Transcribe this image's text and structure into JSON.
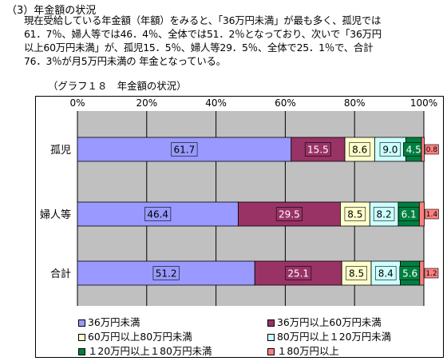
{
  "heading": "（3）年金額の状況",
  "paragraph": "現在受給している年金額（年額）をみると、「36万円未満」が最も多く、孤児では\n61．7％、婦人等では46．4％、全体では51．2％となっており、次いで「36万円\n以上60万円未満」が、孤児15．5％、婦人等29．5％、全体で25．1％で、合計\n76．3％が月5万円未満の 年金となっている。",
  "caption": "（グラフ１８　年金額の状況）",
  "colors": {
    "s1": "#9999ff",
    "s2": "#993366",
    "s3": "#ffffcc",
    "s4": "#ccffff",
    "s5": "#008040",
    "s6": "#ff8080",
    "plot_bg": "#c0c0c0"
  },
  "chart_data": {
    "type": "bar",
    "orientation": "horizontal",
    "stacked": "percent",
    "xlim": [
      0,
      100
    ],
    "x_ticks": [
      "0%",
      "20%",
      "40%",
      "60%",
      "80%",
      "100%"
    ],
    "categories": [
      "孤児",
      "婦人等",
      "合計"
    ],
    "series": [
      {
        "name": "36万円未満",
        "values": [
          61.7,
          46.4,
          51.2
        ]
      },
      {
        "name": "36万円以上60万円未満",
        "values": [
          15.5,
          29.5,
          25.1
        ]
      },
      {
        "name": "60万円以上80万円未満",
        "values": [
          8.6,
          8.5,
          8.5
        ]
      },
      {
        "name": "80万円以上120万円未満",
        "values": [
          9.0,
          8.2,
          8.4
        ]
      },
      {
        "name": "120万円以上180万円未満",
        "values": [
          4.5,
          6.1,
          5.6
        ]
      },
      {
        "name": "180万円以上",
        "values": [
          0.8,
          1.4,
          1.2
        ]
      }
    ],
    "labels": [
      [
        "61.7",
        "15.5",
        "8.6",
        "9.0",
        "4.5",
        "0.8"
      ],
      [
        "46.4",
        "29.5",
        "8.5",
        "8.2",
        "6.1",
        "1.4"
      ],
      [
        "51.2",
        "25.1",
        "8.5",
        "8.4",
        "5.6",
        "1.2"
      ]
    ],
    "legend": {
      "position": "bottom",
      "entries": [
        "36万円未満",
        "36万円以上60万円未満",
        "60万円以上80万円未満",
        "80万円以上１20万円未満",
        "１20万円以上１80万円未満",
        "１80万円以上"
      ]
    },
    "grid": true
  }
}
